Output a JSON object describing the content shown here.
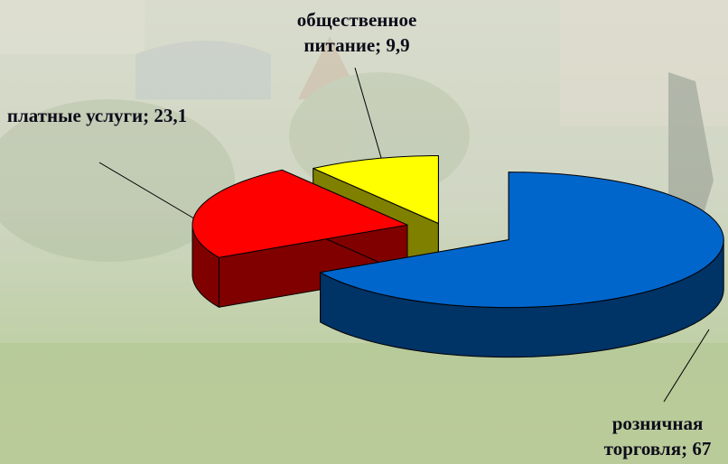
{
  "chart_data": {
    "type": "pie3d",
    "values": [
      67,
      23.1,
      9.9
    ],
    "value_labels": [
      "розничная торговля; 67",
      "платные услуги; 23,1",
      "общественное питание; 9,9"
    ],
    "colors": [
      "#0066cc",
      "#ff0000",
      "#ffff00"
    ],
    "side_colors": [
      "#003366",
      "#800000",
      "#808000"
    ]
  }
}
